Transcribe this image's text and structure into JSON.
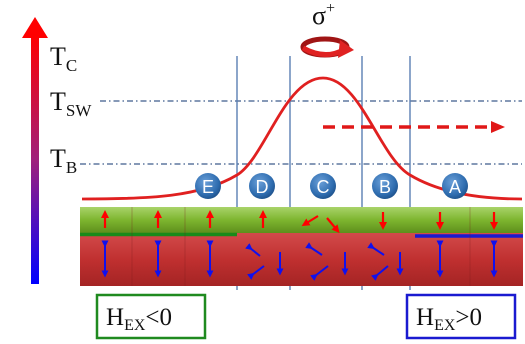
{
  "temperature_axis": {
    "levels": [
      {
        "main": "T",
        "sub": "C"
      },
      {
        "main": "T",
        "sub": "SW"
      },
      {
        "main": "T",
        "sub": "B"
      }
    ]
  },
  "laser": {
    "label_main": "σ",
    "label_sup": "+"
  },
  "regions": [
    "E",
    "D",
    "C",
    "B",
    "A"
  ],
  "exchange_fields": {
    "left": {
      "main": "H",
      "sub": "EX",
      "rel": "<0"
    },
    "right": {
      "main": "H",
      "sub": "EX",
      "rel": ">0"
    }
  },
  "colors": {
    "axis_top": "#ff0000",
    "axis_bottom": "#0000ff",
    "profile_curve": "#e02020",
    "region_circle": "#2f6db0",
    "top_layer": "#7db52f",
    "bottom_layer": "#c03030",
    "left_box": "#1f8a1f",
    "right_box": "#1a1ad0"
  }
}
